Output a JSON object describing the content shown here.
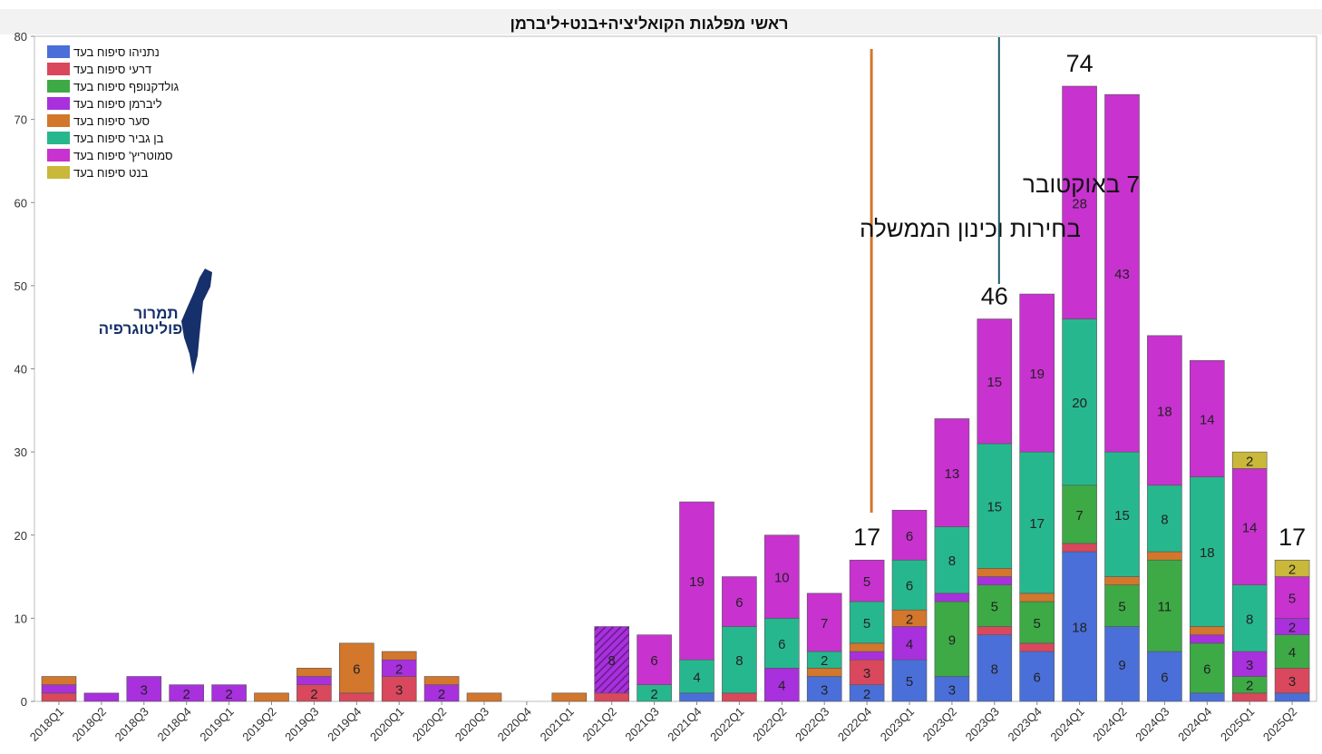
{
  "chart_data": {
    "type": "bar",
    "stacked": true,
    "title": "ראשי מפלגות הקואליציה+בנט+ליברמן",
    "xlabel": "",
    "ylabel": "",
    "ylim": [
      0,
      80
    ],
    "yticks": [
      0,
      10,
      20,
      30,
      40,
      50,
      60,
      70,
      80
    ],
    "categories": [
      "2018Q1",
      "2018Q2",
      "2018Q3",
      "2018Q4",
      "2019Q1",
      "2019Q2",
      "2019Q3",
      "2019Q4",
      "2020Q1",
      "2020Q2",
      "2020Q3",
      "2020Q4",
      "2021Q1",
      "2021Q2",
      "2021Q3",
      "2021Q4",
      "2022Q1",
      "2022Q2",
      "2022Q3",
      "2022Q4",
      "2023Q1",
      "2023Q2",
      "2023Q3",
      "2023Q4",
      "2024Q1",
      "2024Q2",
      "2024Q3",
      "2024Q4",
      "2025Q1",
      "2025Q2"
    ],
    "series": [
      {
        "name": "נתניהו סיפוח בעד",
        "color": "#4a6fd9",
        "values": [
          0,
          0,
          0,
          0,
          0,
          0,
          0,
          0,
          0,
          0,
          0,
          0,
          0,
          0,
          0,
          1,
          0,
          0,
          3,
          2,
          5,
          3,
          8,
          6,
          18,
          9,
          6,
          1,
          0,
          1
        ]
      },
      {
        "name": "דרעי סיפוח בעד",
        "color": "#d9485c",
        "values": [
          1,
          0,
          0,
          0,
          0,
          0,
          2,
          1,
          3,
          0,
          0,
          0,
          0,
          1,
          0,
          0,
          1,
          0,
          0,
          3,
          0,
          0,
          1,
          1,
          1,
          0,
          0,
          0,
          1,
          3
        ]
      },
      {
        "name": "גולדקנופף סיפוח בעד",
        "color": "#3daa46",
        "values": [
          0,
          0,
          0,
          0,
          0,
          0,
          0,
          0,
          0,
          0,
          0,
          0,
          0,
          0,
          0,
          0,
          0,
          0,
          0,
          0,
          0,
          9,
          5,
          5,
          7,
          5,
          11,
          6,
          2,
          4
        ]
      },
      {
        "name": "ליברמן סיפוח בעד",
        "color": "#a830dd",
        "values": [
          1,
          1,
          3,
          2,
          2,
          0,
          1,
          0,
          2,
          2,
          0,
          0,
          0,
          8,
          0,
          0,
          0,
          4,
          0,
          1,
          4,
          1,
          1,
          0,
          0,
          0,
          0,
          1,
          3,
          2
        ]
      },
      {
        "name": "סער סיפוח בעד",
        "color": "#d2772c",
        "values": [
          1,
          0,
          0,
          0,
          0,
          1,
          1,
          6,
          1,
          1,
          1,
          0,
          1,
          0,
          0,
          0,
          0,
          0,
          1,
          1,
          2,
          0,
          1,
          1,
          0,
          1,
          1,
          1,
          0,
          0
        ]
      },
      {
        "name": "בן גביר סיפוח בעד",
        "color": "#27b78e",
        "values": [
          0,
          0,
          0,
          0,
          0,
          0,
          0,
          0,
          0,
          0,
          0,
          0,
          0,
          0,
          2,
          4,
          8,
          6,
          2,
          5,
          6,
          8,
          15,
          17,
          20,
          15,
          8,
          18,
          8,
          0
        ]
      },
      {
        "name": "סמוטריץ' סיפוח בעד",
        "color": "#c832cf",
        "values": [
          0,
          0,
          0,
          0,
          0,
          0,
          0,
          0,
          0,
          0,
          0,
          0,
          0,
          0,
          6,
          19,
          6,
          10,
          7,
          5,
          6,
          13,
          15,
          19,
          28,
          43,
          18,
          14,
          14,
          5
        ]
      },
      {
        "name": "בנט סיפוח בעד",
        "color": "#c9b83a",
        "values": [
          0,
          0,
          0,
          0,
          0,
          0,
          0,
          0,
          0,
          0,
          0,
          0,
          0,
          0,
          0,
          0,
          0,
          0,
          0,
          0,
          0,
          0,
          0,
          0,
          0,
          0,
          0,
          0,
          2,
          2
        ]
      }
    ],
    "hatched_bar": "2021Q2",
    "totals_shown": [
      {
        "category": "2022Q4",
        "label": "17"
      },
      {
        "category": "2023Q3",
        "label": "46"
      },
      {
        "category": "2024Q1",
        "label": "74"
      },
      {
        "category": "2025Q2",
        "label": "17"
      }
    ],
    "annotations": [
      {
        "text": "בחירות וכינון הממשלה",
        "line_at": "2022Q4",
        "color": "#d2772c"
      },
      {
        "text": "7 באוקטובר",
        "line_at": "2023Q3",
        "color": "#1f5a6b"
      }
    ],
    "legend_position": "top-left",
    "grid": false
  },
  "logo": {
    "line1": "תמרור",
    "line2": "פוליטוגרפיה"
  }
}
